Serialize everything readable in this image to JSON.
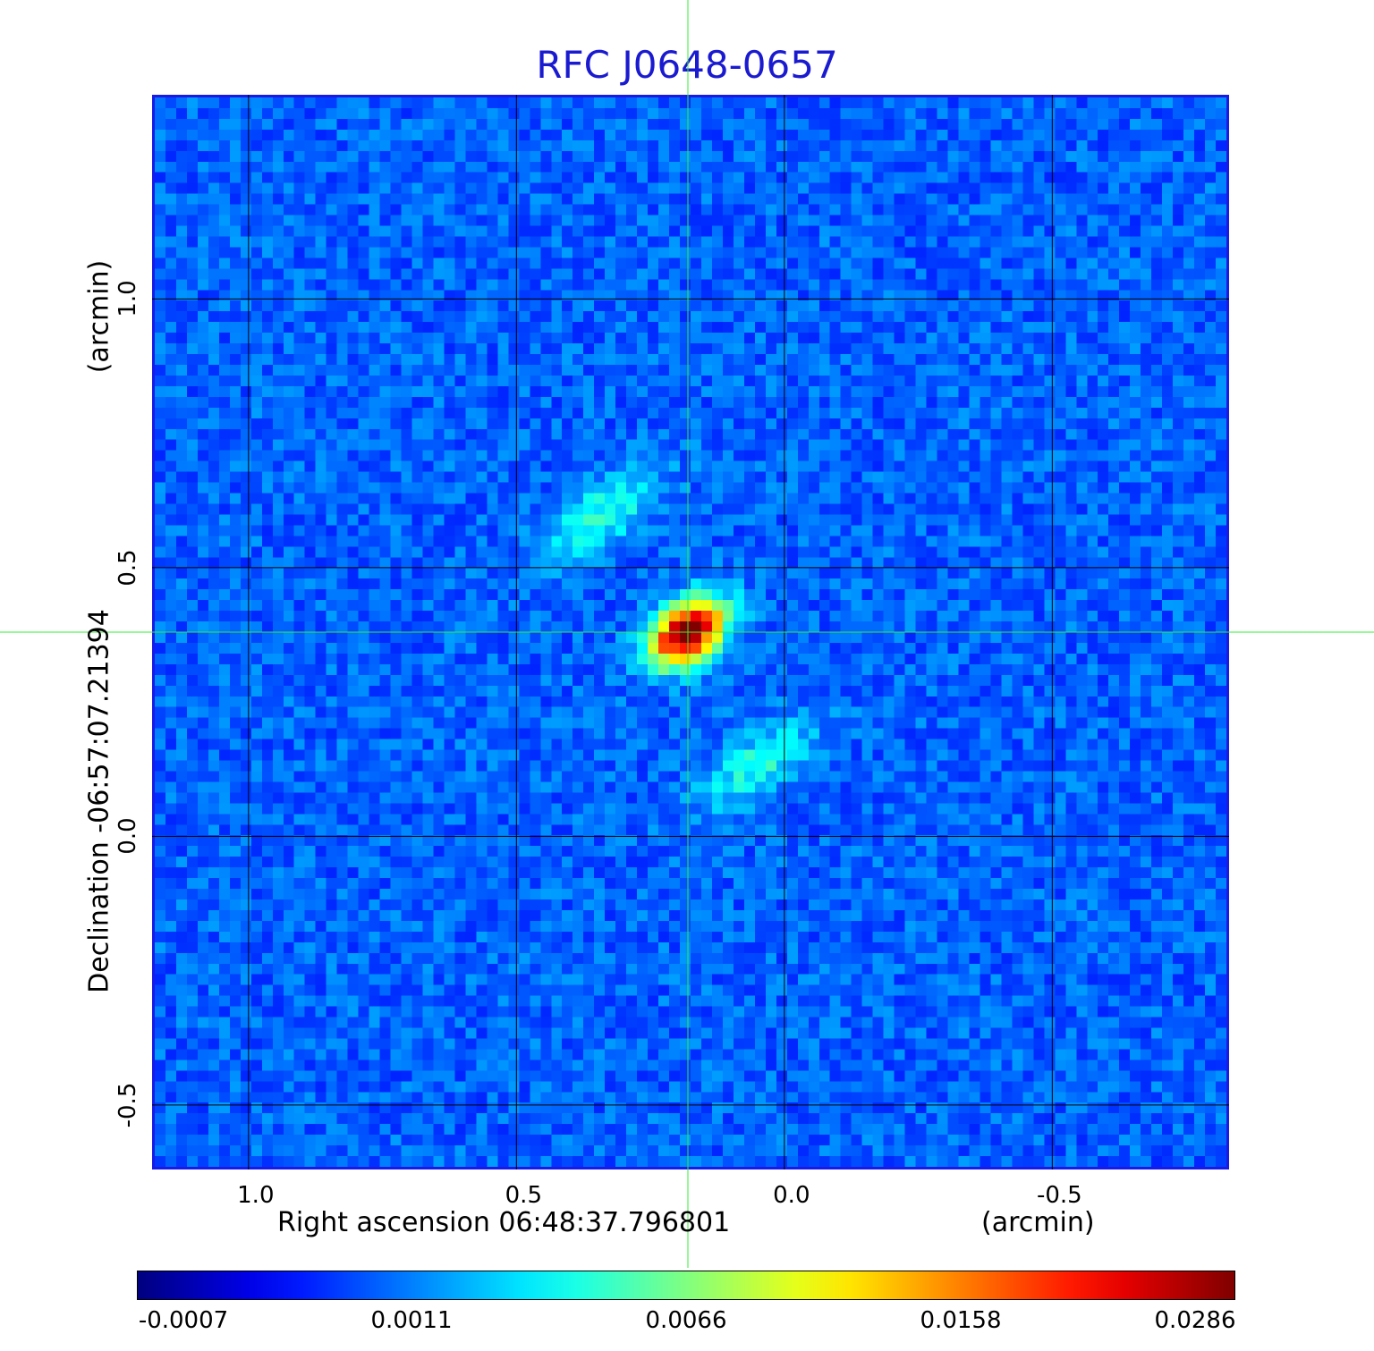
{
  "title": "RFC J0648-0657",
  "chart_data": {
    "type": "heatmap",
    "title": "RFC J0648-0657",
    "xlabel": "Right ascension  06:48:37.796801",
    "xunit": "(arcmin)",
    "ylabel": "Declination  -06:57:07.21394",
    "yunit": "(arcmin)",
    "x_ticks": [
      "1.0",
      "0.5",
      "0.0",
      "-0.5"
    ],
    "y_ticks": [
      "1.0",
      "0.5",
      "0.0",
      "-0.5"
    ],
    "xlim": [
      1.18,
      -0.83
    ],
    "ylim": [
      -0.62,
      1.38
    ],
    "grid": true,
    "crosshair": {
      "x": 0.18,
      "y": 0.38,
      "color": "#33ee33"
    },
    "colormap": "jet",
    "colorbar_ticks": [
      "-0.0007",
      "0.0011",
      "0.0066",
      "0.0158",
      "0.0286"
    ],
    "sources": [
      {
        "x": 0.18,
        "y": 0.38,
        "peak": 0.0286
      },
      {
        "x": 0.34,
        "y": 0.6,
        "peak": 0.0066
      },
      {
        "x": 0.05,
        "y": 0.13,
        "peak": 0.0059
      }
    ]
  },
  "colors": {
    "title": "#1a1ad0",
    "frame": "#1a1ae6",
    "grid": "#000000",
    "crosshair": "#33ee33"
  }
}
